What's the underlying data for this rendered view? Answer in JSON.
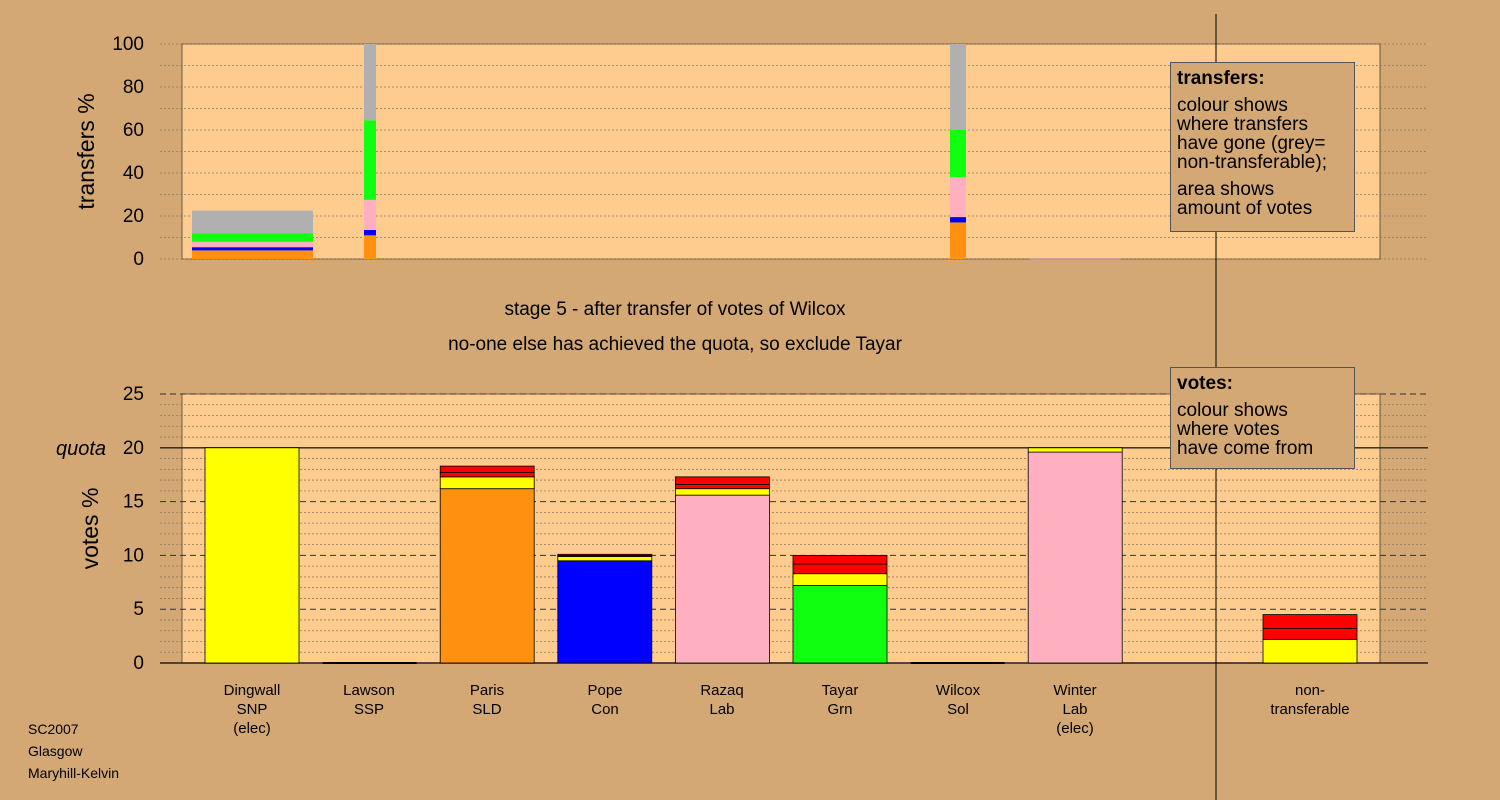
{
  "header": {
    "stage_text": "stage 5 - after transfer of votes of Wilcox",
    "decision_text": "no-one else has achieved the quota, so exclude Tayar"
  },
  "transfers_box": {
    "title": "transfers:",
    "lines1": [
      "colour shows",
      "where transfers",
      "have gone (grey=",
      "non-transferable);"
    ],
    "lines2": [
      "area shows",
      "amount of votes"
    ]
  },
  "votes_box": {
    "title": "votes:",
    "lines": [
      "colour shows",
      "where votes",
      "have come from"
    ]
  },
  "footer": {
    "line1": "SC2007",
    "line2": "Glasgow",
    "line3": "Maryhill-Kelvin"
  },
  "colors": {
    "SNP": "#ffff00",
    "SSP": "#ff0000",
    "SLD": "#ff9010",
    "Con": "#0000ff",
    "Lab": "#ffb0c0",
    "Grn": "#10ff10",
    "Sol": "#ff0000",
    "Non-transferable": "#b0b0b0",
    "background": "#d3a874",
    "plot": "#ffcc90"
  },
  "chart_data": [
    {
      "type": "bar",
      "stacked": true,
      "ylabel": "transfers %",
      "ylim": [
        0,
        100
      ],
      "yticks": [
        0,
        20,
        40,
        60,
        80,
        100
      ],
      "columns": [
        {
          "candidate": "Dingwall",
          "segments": [
            {
              "party": "SLD",
              "value": 4.0
            },
            {
              "party": "Con",
              "value": 1.5
            },
            {
              "party": "Lab",
              "value": 2.5
            },
            {
              "party": "Grn",
              "value": 4.0
            },
            {
              "party": "Non-transferable",
              "value": 10.5
            }
          ]
        },
        {
          "candidate": "Lawson",
          "segments": [
            {
              "party": "SLD",
              "value": 11.0
            },
            {
              "party": "Con",
              "value": 2.5
            },
            {
              "party": "Lab",
              "value": 14.0
            },
            {
              "party": "Grn",
              "value": 37.0
            },
            {
              "party": "Non-transferable",
              "value": 35.5
            }
          ]
        },
        {
          "candidate": "Wilcox",
          "segments": [
            {
              "party": "SLD",
              "value": 17.0
            },
            {
              "party": "Con",
              "value": 2.5
            },
            {
              "party": "Lab",
              "value": 18.5
            },
            {
              "party": "Grn",
              "value": 22.0
            },
            {
              "party": "Non-transferable",
              "value": 40.0
            }
          ]
        }
      ]
    },
    {
      "type": "bar",
      "stacked": true,
      "ylabel": "votes %",
      "ylim": [
        0,
        25
      ],
      "yticks": [
        0,
        5,
        10,
        15,
        20,
        25
      ],
      "quota": 20,
      "quota_label": "quota",
      "categories": [
        {
          "name": "Dingwall",
          "party": "SNP",
          "note": "(elec)"
        },
        {
          "name": "Lawson",
          "party": "SSP",
          "note": ""
        },
        {
          "name": "Paris",
          "party": "SLD",
          "note": ""
        },
        {
          "name": "Pope",
          "party": "Con",
          "note": ""
        },
        {
          "name": "Razaq",
          "party": "Lab",
          "note": ""
        },
        {
          "name": "Tayar",
          "party": "Grn",
          "note": ""
        },
        {
          "name": "Wilcox",
          "party": "Sol",
          "note": ""
        },
        {
          "name": "Winter",
          "party": "Lab",
          "note": "(elec)"
        }
      ],
      "non_transferable_label": [
        "non-",
        "transferable"
      ],
      "stacks": [
        [
          {
            "party": "SNP",
            "value": 20.0
          }
        ],
        [],
        [
          {
            "party": "SLD",
            "value": 16.2
          },
          {
            "party": "SNP",
            "value": 1.1
          },
          {
            "party": "SSP",
            "value": 0.4
          },
          {
            "party": "Sol",
            "value": 0.6
          }
        ],
        [
          {
            "party": "Con",
            "value": 9.5
          },
          {
            "party": "SNP",
            "value": 0.4
          },
          {
            "party": "SSP",
            "value": 0.1
          },
          {
            "party": "Sol",
            "value": 0.1
          }
        ],
        [
          {
            "party": "Lab",
            "value": 15.6
          },
          {
            "party": "SNP",
            "value": 0.6
          },
          {
            "party": "SSP",
            "value": 0.4
          },
          {
            "party": "Sol",
            "value": 0.7
          }
        ],
        [
          {
            "party": "Grn",
            "value": 7.2
          },
          {
            "party": "SNP",
            "value": 1.1
          },
          {
            "party": "SSP",
            "value": 0.9
          },
          {
            "party": "Sol",
            "value": 0.8
          }
        ],
        [],
        [
          {
            "party": "Lab",
            "value": 19.6
          },
          {
            "party": "SNP",
            "value": 0.4
          }
        ]
      ],
      "non_transferable_stack": [
        {
          "party": "SNP",
          "value": 2.2
        },
        {
          "party": "SSP",
          "value": 1.0
        },
        {
          "party": "Sol",
          "value": 1.3
        }
      ]
    }
  ]
}
